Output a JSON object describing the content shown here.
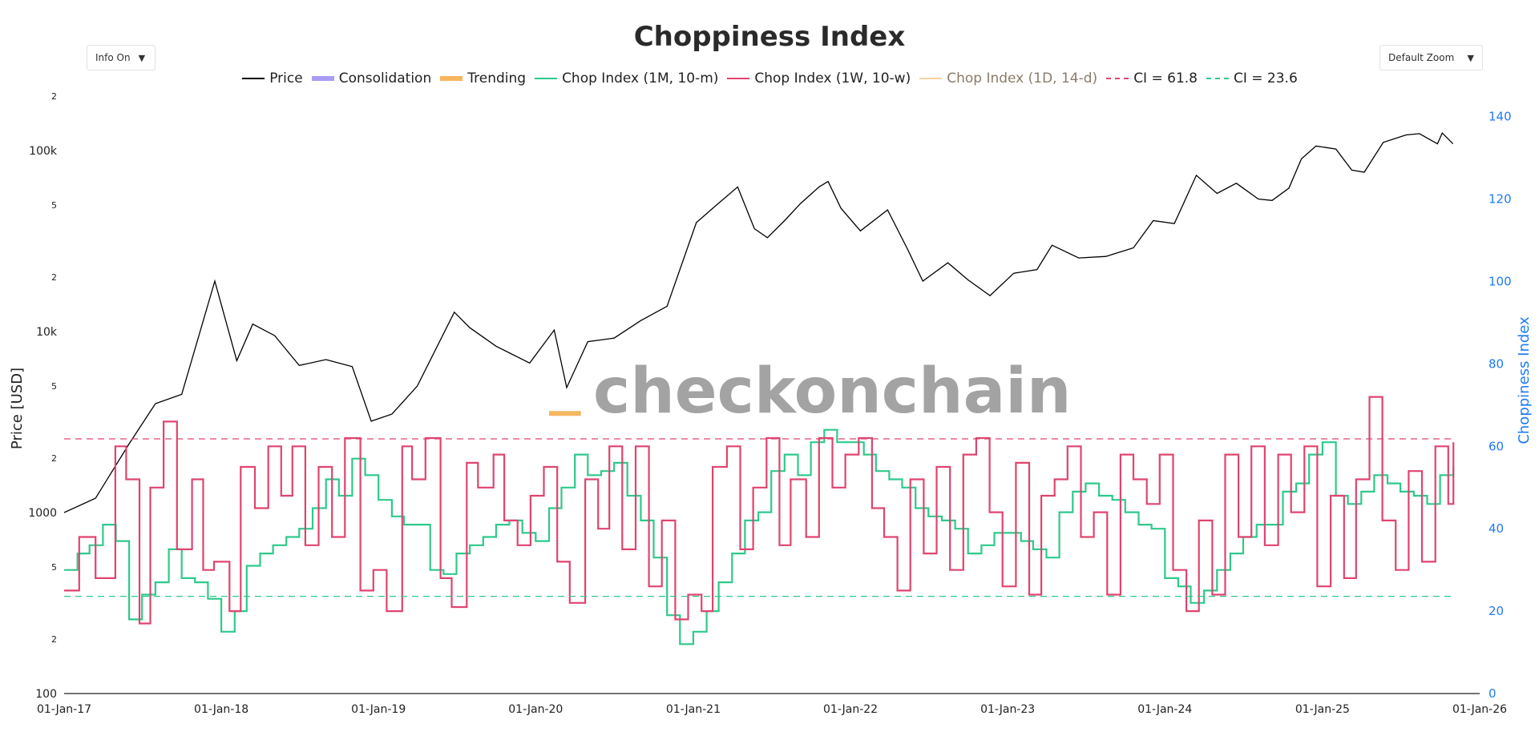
{
  "controls": {
    "info_label": "Info On",
    "zoom_label": "Default Zoom",
    "caret": "▼"
  },
  "watermark": "checkonchain",
  "chart_data": {
    "type": "line",
    "title": "Choppiness Index",
    "xlabel": "",
    "ylabel": "Price [USD]",
    "y2label": "Choppiness Index",
    "y_scale": "log",
    "ylim": [
      100,
      200000
    ],
    "y2lim": [
      0,
      145
    ],
    "xlim": [
      "2017-01-01",
      "2026-01-01"
    ],
    "x_ticks": [
      "01-Jan-17",
      "01-Jan-18",
      "01-Jan-19",
      "01-Jan-20",
      "01-Jan-21",
      "01-Jan-22",
      "01-Jan-23",
      "01-Jan-24",
      "01-Jan-25",
      "01-Jan-26"
    ],
    "y_ticks_major": [
      "100",
      "1000",
      "10k",
      "100k"
    ],
    "y_ticks_minor": [
      "2",
      "5"
    ],
    "y2_ticks": [
      "0",
      "20",
      "40",
      "60",
      "80",
      "100",
      "120",
      "140"
    ],
    "grid": false,
    "legend_position": "top-center",
    "legend": [
      {
        "name": "Price",
        "color": "#000000",
        "style": "line"
      },
      {
        "name": "Consolidation",
        "color": "#a99cf5",
        "style": "thick"
      },
      {
        "name": "Trending",
        "color": "#f5b65f",
        "style": "thick"
      },
      {
        "name": "Chop Index (1M, 10-m)",
        "color": "#2ec98a",
        "style": "line"
      },
      {
        "name": "Chop Index (1W, 10-w)",
        "color": "#e0446e",
        "style": "line"
      },
      {
        "name": "Chop Index (1D, 14-d)",
        "color": "#f5b65f",
        "style": "thin"
      },
      {
        "name": "CI = 61.8",
        "color": "#e0446e",
        "style": "dash"
      },
      {
        "name": "CI = 23.6",
        "color": "#2ec98a",
        "style": "dash"
      }
    ],
    "series": [
      {
        "name": "Price",
        "axis": "left",
        "color": "#000000",
        "x": [
          "2017-01-01",
          "2017-03-15",
          "2017-06-01",
          "2017-08-01",
          "2017-10-01",
          "2017-12-17",
          "2018-02-06",
          "2018-03-15",
          "2018-05-05",
          "2018-07-01",
          "2018-09-01",
          "2018-11-01",
          "2018-12-15",
          "2019-02-01",
          "2019-04-01",
          "2019-06-26",
          "2019-08-01",
          "2019-10-01",
          "2019-12-18",
          "2020-02-13",
          "2020-03-13",
          "2020-05-01",
          "2020-07-01",
          "2020-09-01",
          "2020-11-01",
          "2021-01-08",
          "2021-02-15",
          "2021-04-14",
          "2021-05-23",
          "2021-06-22",
          "2021-08-01",
          "2021-09-07",
          "2021-10-20",
          "2021-11-10",
          "2021-12-10",
          "2022-01-24",
          "2022-03-28",
          "2022-05-12",
          "2022-06-18",
          "2022-08-15",
          "2022-10-01",
          "2022-11-21",
          "2023-01-15",
          "2023-03-10",
          "2023-04-14",
          "2023-06-15",
          "2023-08-17",
          "2023-10-20",
          "2023-12-05",
          "2024-01-23",
          "2024-03-14",
          "2024-05-01",
          "2024-06-15",
          "2024-08-05",
          "2024-09-06",
          "2024-10-15",
          "2024-11-13",
          "2024-12-17",
          "2025-02-01",
          "2025-03-10",
          "2025-04-08",
          "2025-05-22",
          "2025-07-14",
          "2025-08-14",
          "2025-09-25",
          "2025-10-06",
          "2025-10-31"
        ],
        "y": [
          1000,
          1200,
          2400,
          4000,
          4500,
          19000,
          6900,
          11000,
          9500,
          6500,
          7000,
          6400,
          3200,
          3500,
          5000,
          12800,
          10500,
          8300,
          6700,
          10200,
          4900,
          8800,
          9200,
          11500,
          13800,
          40000,
          48000,
          63000,
          37000,
          33000,
          41000,
          51000,
          63000,
          67500,
          48000,
          36000,
          47000,
          29000,
          19000,
          24000,
          19300,
          15800,
          21000,
          22000,
          30000,
          25500,
          26000,
          29000,
          41000,
          39500,
          73000,
          58000,
          66000,
          54000,
          53000,
          62000,
          90000,
          106000,
          102000,
          78000,
          76000,
          111000,
          122000,
          124000,
          109000,
          125000,
          109000
        ]
      },
      {
        "name": "Chop Index (1M, 10-m)",
        "axis": "right",
        "color": "#2ec98a",
        "x": [
          "2017-01-01",
          "2017-02-01",
          "2017-03-01",
          "2017-04-01",
          "2017-05-01",
          "2017-06-01",
          "2017-07-01",
          "2017-08-01",
          "2017-09-01",
          "2017-10-01",
          "2017-11-01",
          "2017-12-01",
          "2018-01-01",
          "2018-02-01",
          "2018-03-01",
          "2018-04-01",
          "2018-05-01",
          "2018-06-01",
          "2018-07-01",
          "2018-08-01",
          "2018-09-01",
          "2018-10-01",
          "2018-11-01",
          "2018-12-01",
          "2019-01-01",
          "2019-02-01",
          "2019-03-01",
          "2019-04-01",
          "2019-05-01",
          "2019-06-01",
          "2019-07-01",
          "2019-08-01",
          "2019-09-01",
          "2019-10-01",
          "2019-11-01",
          "2019-12-01",
          "2020-01-01",
          "2020-02-01",
          "2020-03-01",
          "2020-04-01",
          "2020-05-01",
          "2020-06-01",
          "2020-07-01",
          "2020-08-01",
          "2020-09-01",
          "2020-10-01",
          "2020-11-01",
          "2020-12-01",
          "2021-01-01",
          "2021-02-01",
          "2021-03-01",
          "2021-04-01",
          "2021-05-01",
          "2021-06-01",
          "2021-07-01",
          "2021-08-01",
          "2021-09-01",
          "2021-10-01",
          "2021-11-01",
          "2021-12-01",
          "2022-01-01",
          "2022-02-01",
          "2022-03-01",
          "2022-04-01",
          "2022-05-01",
          "2022-06-01",
          "2022-07-01",
          "2022-08-01",
          "2022-09-01",
          "2022-10-01",
          "2022-11-01",
          "2022-12-01",
          "2023-01-01",
          "2023-02-01",
          "2023-03-01",
          "2023-04-01",
          "2023-05-01",
          "2023-06-01",
          "2023-07-01",
          "2023-08-01",
          "2023-09-01",
          "2023-10-01",
          "2023-11-01",
          "2023-12-01",
          "2024-01-01",
          "2024-02-01",
          "2024-03-01",
          "2024-04-01",
          "2024-05-01",
          "2024-06-01",
          "2024-07-01",
          "2024-08-01",
          "2024-09-01",
          "2024-10-01",
          "2024-11-01",
          "2024-12-01",
          "2025-01-01",
          "2025-02-01",
          "2025-03-01",
          "2025-04-01",
          "2025-05-01",
          "2025-06-01",
          "2025-07-01",
          "2025-08-01",
          "2025-09-01",
          "2025-10-01",
          "2025-11-01"
        ],
        "y": [
          30,
          34,
          36,
          41,
          37,
          18,
          24,
          27,
          35,
          28,
          27,
          23,
          15,
          20,
          31,
          34,
          36,
          38,
          40,
          45,
          52,
          48,
          57,
          53,
          47,
          43,
          41,
          41,
          30,
          29,
          34,
          36,
          38,
          41,
          42,
          39,
          37,
          45,
          50,
          58,
          53,
          54,
          56,
          48,
          42,
          33,
          19,
          12,
          15,
          20,
          27,
          34,
          42,
          44,
          54,
          58,
          53,
          61,
          64,
          61,
          61,
          58,
          54,
          52,
          50,
          45,
          43,
          42,
          40,
          34,
          36,
          39,
          39,
          37,
          35,
          33,
          44,
          49,
          51,
          48,
          47,
          44,
          41,
          40,
          28,
          26,
          22,
          25,
          30,
          34,
          38,
          41,
          41,
          49,
          51,
          58,
          61,
          48,
          46,
          49,
          53,
          51,
          49,
          48,
          46,
          53,
          55
        ]
      },
      {
        "name": "Chop Index (1W, 10-w)",
        "axis": "right",
        "color": "#e0446e",
        "x": [
          "2017-01-01",
          "2017-02-05",
          "2017-03-15",
          "2017-04-30",
          "2017-05-25",
          "2017-06-25",
          "2017-07-20",
          "2017-08-20",
          "2017-09-20",
          "2017-10-25",
          "2017-11-20",
          "2017-12-15",
          "2018-01-20",
          "2018-02-15",
          "2018-03-20",
          "2018-04-20",
          "2018-05-20",
          "2018-06-15",
          "2018-07-15",
          "2018-08-15",
          "2018-09-15",
          "2018-10-15",
          "2018-11-20",
          "2018-12-20",
          "2019-01-20",
          "2019-02-25",
          "2019-03-20",
          "2019-04-20",
          "2019-05-25",
          "2019-06-20",
          "2019-07-25",
          "2019-08-20",
          "2019-09-25",
          "2019-10-20",
          "2019-11-20",
          "2019-12-20",
          "2020-01-20",
          "2020-02-20",
          "2020-03-20",
          "2020-04-25",
          "2020-05-25",
          "2020-06-20",
          "2020-07-20",
          "2020-08-20",
          "2020-09-20",
          "2020-10-20",
          "2020-11-20",
          "2020-12-20",
          "2021-01-20",
          "2021-02-15",
          "2021-03-20",
          "2021-04-20",
          "2021-05-20",
          "2021-06-20",
          "2021-07-20",
          "2021-08-15",
          "2021-09-20",
          "2021-10-20",
          "2021-11-20",
          "2021-12-20",
          "2022-01-20",
          "2022-02-20",
          "2022-03-20",
          "2022-04-20",
          "2022-05-20",
          "2022-06-20",
          "2022-07-20",
          "2022-08-20",
          "2022-09-20",
          "2022-10-20",
          "2022-11-20",
          "2022-12-20",
          "2023-01-20",
          "2023-02-20",
          "2023-03-20",
          "2023-04-20",
          "2023-05-20",
          "2023-06-20",
          "2023-07-20",
          "2023-08-20",
          "2023-09-20",
          "2023-10-20",
          "2023-11-20",
          "2023-12-20",
          "2024-01-20",
          "2024-02-20",
          "2024-03-20",
          "2024-04-20",
          "2024-05-20",
          "2024-06-20",
          "2024-07-20",
          "2024-08-20",
          "2024-09-20",
          "2024-10-20",
          "2024-11-20",
          "2024-12-20",
          "2025-01-20",
          "2025-02-20",
          "2025-03-20",
          "2025-04-20",
          "2025-05-20",
          "2025-06-20",
          "2025-07-20",
          "2025-08-20",
          "2025-09-20",
          "2025-10-20",
          "2025-11-01"
        ],
        "y": [
          25,
          38,
          28,
          60,
          52,
          17,
          50,
          66,
          35,
          52,
          30,
          32,
          20,
          55,
          45,
          60,
          48,
          60,
          36,
          55,
          38,
          62,
          25,
          30,
          20,
          60,
          52,
          62,
          28,
          21,
          56,
          50,
          58,
          42,
          36,
          48,
          55,
          32,
          22,
          52,
          40,
          60,
          35,
          60,
          26,
          42,
          18,
          24,
          20,
          55,
          60,
          35,
          50,
          62,
          36,
          52,
          38,
          62,
          50,
          58,
          62,
          45,
          38,
          25,
          52,
          34,
          55,
          30,
          58,
          62,
          44,
          26,
          56,
          24,
          48,
          52,
          60,
          38,
          44,
          24,
          58,
          52,
          46,
          58,
          30,
          20,
          42,
          24,
          58,
          38,
          60,
          36,
          58,
          44,
          60,
          26,
          48,
          28,
          52,
          72,
          42,
          30,
          54,
          32,
          60,
          46,
          61
        ]
      },
      {
        "name": "CI = 61.8",
        "axis": "right",
        "color": "#e0446e",
        "x": [
          "2017-01-01",
          "2025-11-01"
        ],
        "y": [
          61.8,
          61.8
        ]
      },
      {
        "name": "CI = 23.6",
        "axis": "right",
        "color": "#2ec98a",
        "x": [
          "2017-01-01",
          "2025-11-01"
        ],
        "y": [
          23.6,
          23.6
        ]
      },
      {
        "name": "Trending",
        "axis": "right",
        "color": "#f5b65f",
        "x": [
          "2020-02-01",
          "2020-04-15"
        ],
        "y": [
          68,
          68
        ]
      }
    ]
  }
}
